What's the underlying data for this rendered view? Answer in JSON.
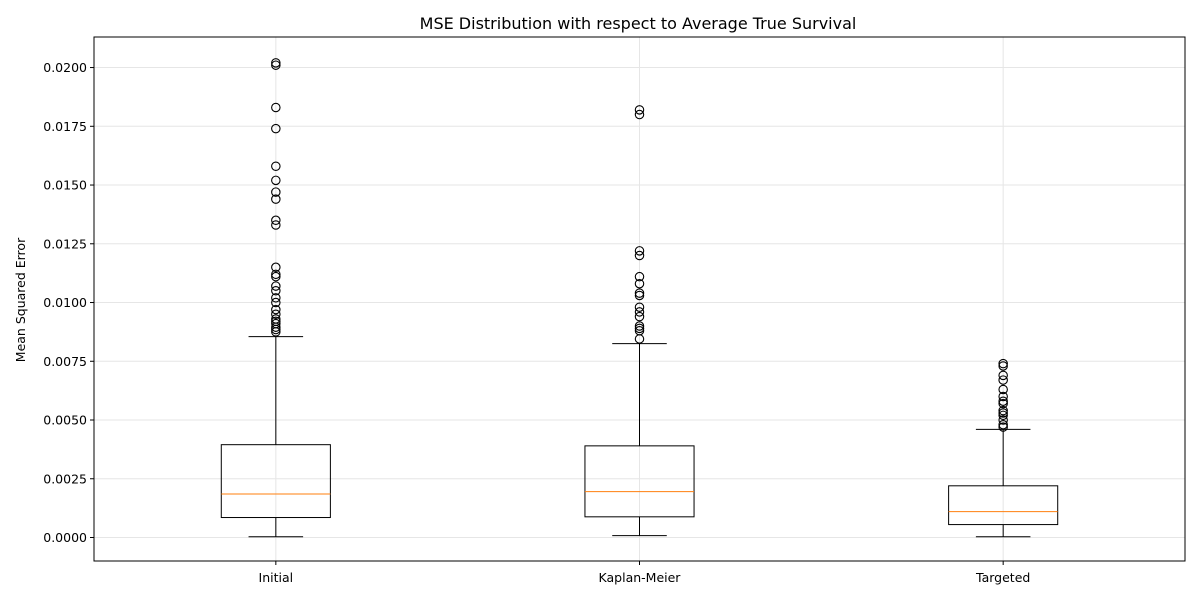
{
  "chart_data": {
    "type": "box",
    "title": "MSE Distribution with respect to Average True Survival",
    "xlabel": "",
    "ylabel": "Mean Squared Error",
    "ylim": [
      -0.001,
      0.0213
    ],
    "yticks": [
      0.0,
      0.0025,
      0.005,
      0.0075,
      0.01,
      0.0125,
      0.015,
      0.0175,
      0.02
    ],
    "ytick_labels": [
      "0.0000",
      "0.0025",
      "0.0050",
      "0.0075",
      "0.0100",
      "0.0125",
      "0.0150",
      "0.0175",
      "0.0200"
    ],
    "grid": true,
    "median_color": "#ff7f0e",
    "categories": [
      "Initial",
      "Kaplan-Meier",
      "Targeted"
    ],
    "boxes": [
      {
        "category": "Initial",
        "whislo": 3e-05,
        "q1": 0.00085,
        "median": 0.00185,
        "q3": 0.00395,
        "whishi": 0.00855,
        "fliers": [
          0.00875,
          0.00885,
          0.00895,
          0.0091,
          0.0092,
          0.0093,
          0.0095,
          0.0097,
          0.01,
          0.0102,
          0.0105,
          0.0107,
          0.0111,
          0.0112,
          0.0115,
          0.0133,
          0.0135,
          0.0144,
          0.0147,
          0.0152,
          0.0158,
          0.0174,
          0.0183,
          0.0201,
          0.0202
        ]
      },
      {
        "category": "Kaplan-Meier",
        "whislo": 8e-05,
        "q1": 0.00088,
        "median": 0.00195,
        "q3": 0.0039,
        "whishi": 0.00825,
        "fliers": [
          0.00845,
          0.0088,
          0.0089,
          0.009,
          0.0094,
          0.0096,
          0.0098,
          0.0103,
          0.0104,
          0.0108,
          0.0111,
          0.012,
          0.0122,
          0.018,
          0.0182
        ]
      },
      {
        "category": "Targeted",
        "whislo": 3e-05,
        "q1": 0.00055,
        "median": 0.0011,
        "q3": 0.0022,
        "whishi": 0.0046,
        "fliers": [
          0.0047,
          0.0048,
          0.005,
          0.0052,
          0.0053,
          0.0054,
          0.0057,
          0.0058,
          0.006,
          0.0063,
          0.0067,
          0.0069,
          0.0073,
          0.0074
        ]
      }
    ]
  }
}
